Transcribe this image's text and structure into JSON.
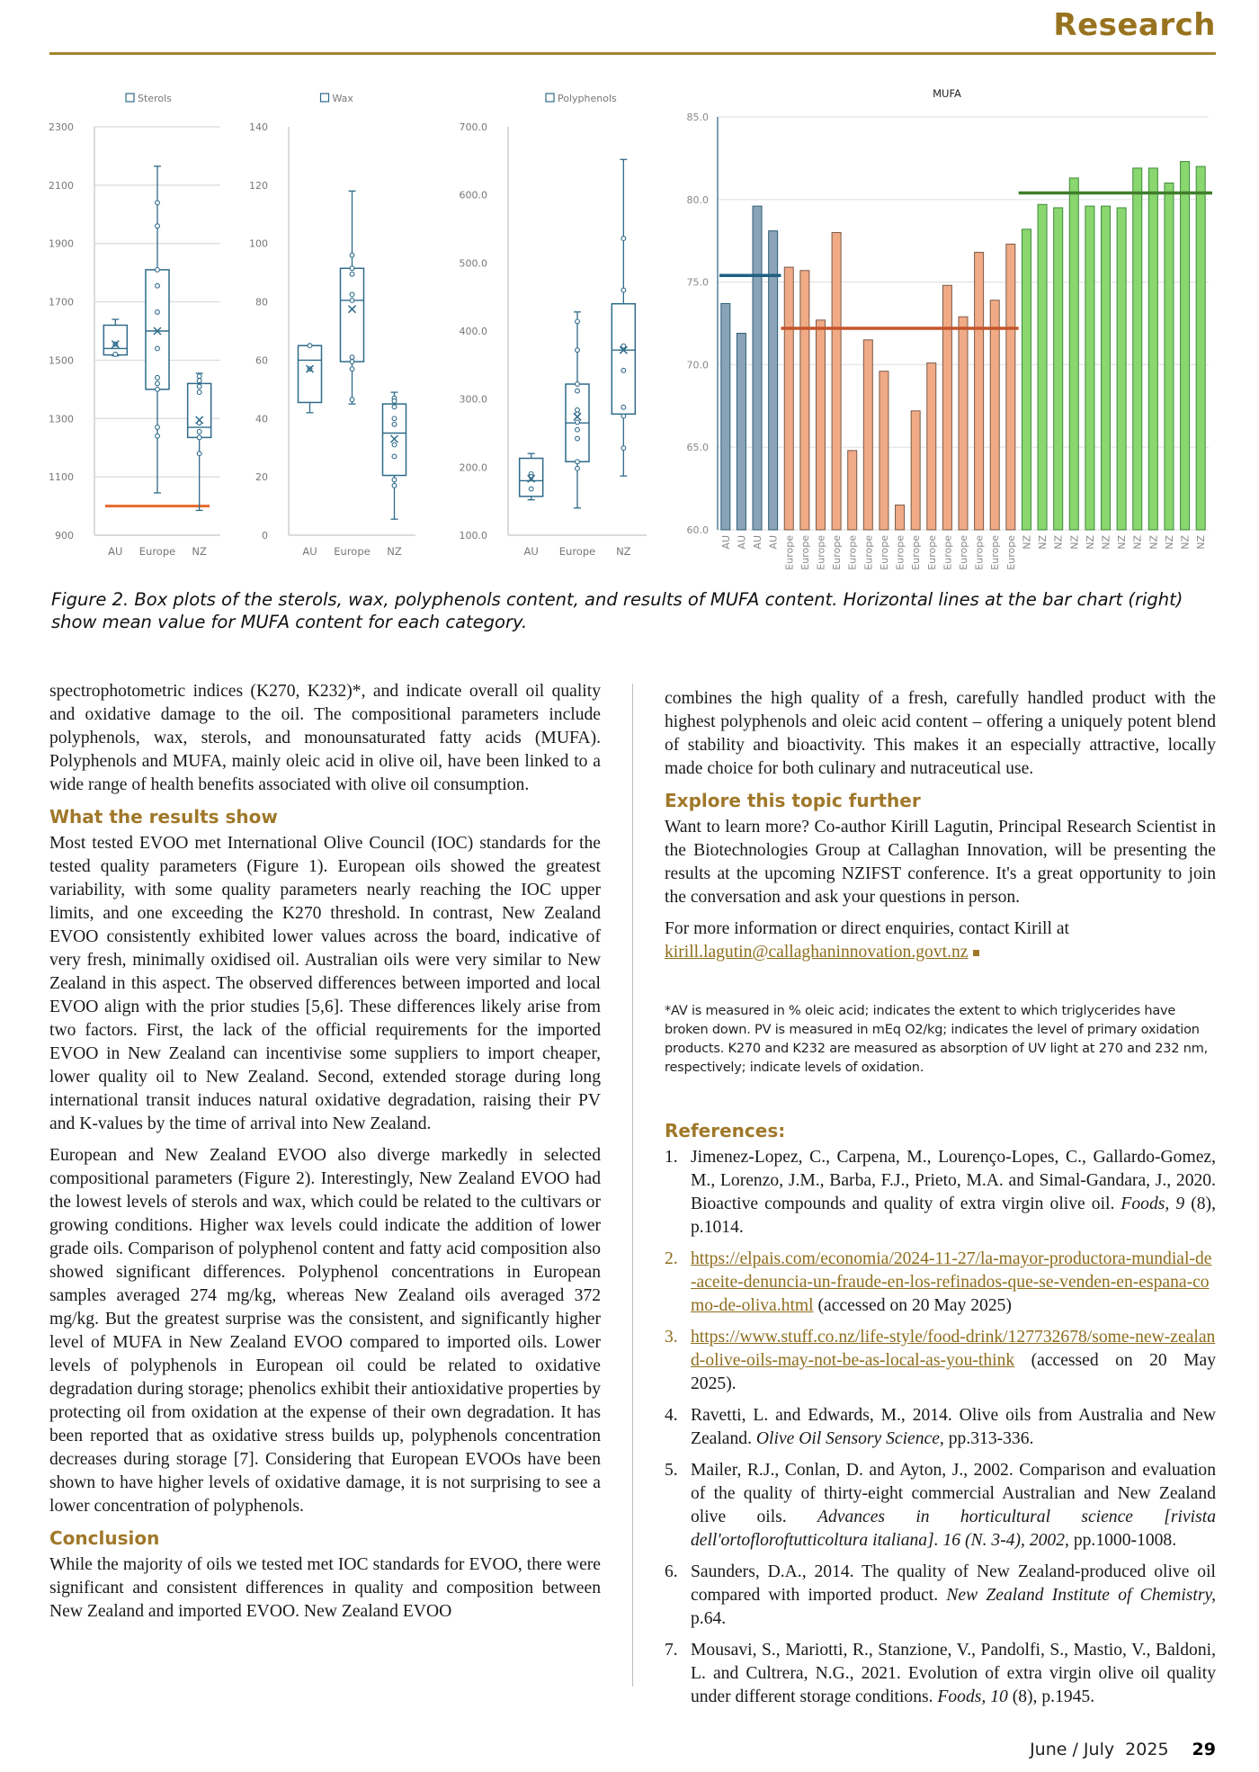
{
  "header": {
    "section": "Research"
  },
  "figure": {
    "caption": "Figure 2. Box plots of the sterols, wax, polyphenols content, and results of MUFA content. Horizontal lines at the bar chart (right) show mean value for MUFA content for each category."
  },
  "colors": {
    "accent": "#a0782a",
    "box": "#2e6b8a",
    "au_bar": "#8aa3b6",
    "europe_bar": "#f0aa86",
    "nz_bar": "#8ad66f",
    "au_mean": "#1f5f82",
    "europe_mean": "#c4552a",
    "nz_mean": "#3f7d2b",
    "limit_line": "#e86a2c"
  },
  "chart_data": [
    {
      "type": "box",
      "title": "Sterols",
      "legend": "Sterols",
      "categories": [
        "AU",
        "Europe",
        "NZ"
      ],
      "ylim": [
        900,
        2300
      ],
      "yticks": [
        "900",
        "1100",
        "1300",
        "1500",
        "1700",
        "1900",
        "2100",
        "2300"
      ],
      "reference_line": 1000,
      "boxes": [
        {
          "min": 1515,
          "q1": 1518,
          "median": 1540,
          "q3": 1620,
          "max": 1640,
          "mean": 1555,
          "points": [
            1520,
            1555
          ]
        },
        {
          "min": 1045,
          "q1": 1400,
          "median": 1600,
          "q3": 1810,
          "max": 2165,
          "mean": 1600,
          "points": [
            2040,
            1960,
            1810,
            1755,
            1665,
            1540,
            1440,
            1420,
            1400,
            1270,
            1240
          ]
        },
        {
          "min": 985,
          "q1": 1235,
          "median": 1270,
          "q3": 1420,
          "max": 1455,
          "mean": 1295,
          "points": [
            1445,
            1430,
            1410,
            1390,
            1285,
            1255,
            1235,
            1180
          ]
        }
      ]
    },
    {
      "type": "box",
      "title": "Wax",
      "legend": "Wax",
      "categories": [
        "AU",
        "Europe",
        "NZ"
      ],
      "ylim": [
        0,
        140
      ],
      "yticks": [
        "0",
        "20",
        "40",
        "60",
        "80",
        "100",
        "120",
        "140"
      ],
      "boxes": [
        {
          "min": 42,
          "q1": 45.5,
          "median": 60,
          "q3": 65,
          "max": 65,
          "mean": 57,
          "points": [
            65,
            57
          ]
        },
        {
          "min": 45,
          "q1": 59.5,
          "median": 80.5,
          "q3": 91.5,
          "max": 118,
          "mean": 77.5,
          "points": [
            96,
            91.5,
            89.5,
            82.5,
            80.5,
            61,
            59.5,
            57,
            46.5
          ]
        },
        {
          "min": 5.5,
          "q1": 20.5,
          "median": 35,
          "q3": 45,
          "max": 49,
          "mean": 33,
          "points": [
            47,
            46,
            44,
            40,
            38,
            31,
            27,
            19,
            17
          ]
        }
      ]
    },
    {
      "type": "box",
      "title": "Polyphenols",
      "legend": "Polyphenols",
      "categories": [
        "AU",
        "Europe",
        "NZ"
      ],
      "ylim": [
        100,
        700
      ],
      "yticks": [
        "100.0",
        "200.0",
        "300.0",
        "400.0",
        "500.0",
        "600.0",
        "700.0"
      ],
      "boxes": [
        {
          "min": 152,
          "q1": 157,
          "median": 180,
          "q3": 213,
          "max": 220,
          "mean": 183,
          "points": [
            190,
            186,
            168
          ]
        },
        {
          "min": 140,
          "q1": 208,
          "median": 265,
          "q3": 322,
          "max": 428,
          "mean": 274,
          "points": [
            414,
            372,
            322,
            312,
            284,
            278,
            266,
            255,
            242,
            208,
            198
          ]
        },
        {
          "min": 187,
          "q1": 278,
          "median": 372,
          "q3": 440,
          "max": 652,
          "mean": 372,
          "points": [
            536,
            460,
            378,
            342,
            288,
            275,
            228
          ]
        }
      ]
    },
    {
      "type": "bar",
      "title": "MUFA",
      "ylim": [
        60,
        85
      ],
      "yticks": [
        "60.0",
        "65.0",
        "70.0",
        "75.0",
        "80.0",
        "85.0"
      ],
      "groups": [
        {
          "name": "AU",
          "values": [
            73.7,
            71.9,
            79.6,
            78.1
          ],
          "mean": 75.4
        },
        {
          "name": "Europe",
          "values": [
            75.9,
            75.7,
            72.7,
            78.0,
            64.8,
            71.5,
            69.6,
            61.5,
            67.2,
            70.1,
            74.8,
            72.9,
            76.8,
            73.9,
            77.3
          ],
          "mean": 72.2
        },
        {
          "name": "NZ",
          "values": [
            78.2,
            79.7,
            79.5,
            81.3,
            79.6,
            79.6,
            79.5,
            81.9,
            81.9,
            81.0,
            82.3,
            82.0
          ],
          "mean": 80.4
        }
      ]
    }
  ],
  "left_column": {
    "intro": "spectrophotometric indices (K270, K232)*, and indicate overall oil quality and oxidative damage to the oil. The compositional parameters include polyphenols, wax, sterols, and monounsaturated fatty acids (MUFA). Polyphenols and MUFA, mainly oleic acid in olive oil, have been linked to a wide range of health benefits associated with olive oil consumption.",
    "results_heading": "What the results show",
    "results_p1": "Most tested EVOO met International Olive Council (IOC) standards for the tested quality parameters (Figure 1). European oils showed the greatest variability, with some quality parameters nearly reaching the IOC upper limits, and one exceeding the K270 threshold. In contrast, New Zealand EVOO consistently exhibited lower values across the board, indicative of very fresh, minimally oxidised oil. Australian oils were very similar to New Zealand in this aspect. The observed differences between imported and local EVOO align with the prior studies [5,6]. These differences likely arise from two factors. First, the lack of the official requirements for the imported EVOO in New Zealand can incentivise some suppliers to import cheaper, lower quality oil to New Zealand. Second, extended storage during long international transit induces natural oxidative degradation, raising their PV and K-values by the time of arrival into New Zealand.",
    "results_p2": "European and New Zealand EVOO also diverge markedly in selected compositional parameters (Figure 2). Interestingly, New Zealand EVOO had the lowest levels of sterols and wax, which could be related to the cultivars or growing conditions. Higher wax levels could indicate the addition of lower grade oils. Comparison of polyphenol content and fatty acid composition also showed significant differences. Polyphenol concentrations in European samples averaged 274 mg/kg, whereas New Zealand oils averaged 372 mg/kg. But the greatest surprise was the consistent, and significantly higher level of MUFA in New Zealand EVOO compared to imported oils. Lower levels of polyphenols in European oil could be related to oxidative degradation during storage; phenolics exhibit their antioxidative properties by protecting oil from oxidation at the expense of their own degradation. It has been reported that as oxidative stress builds up, polyphenols concentration decreases during storage [7]. Considering that European EVOOs have been shown to have higher levels of oxidative damage, it is not surprising to see a lower concentration of polyphenols.",
    "conclusion_heading": "Conclusion",
    "conclusion_p": "While the majority of oils we tested met IOC standards for EVOO, there were significant and consistent differences in quality and composition between New Zealand and imported EVOO. New Zealand EVOO"
  },
  "right_column": {
    "conclusion_cont": "combines the high quality of a fresh, carefully handled product with the highest polyphenols and oleic acid content – offering a uniquely potent blend of stability and bioactivity. This makes it an especially attractive, locally made choice for both culinary and nutraceutical use.",
    "explore_heading": "Explore this topic further",
    "explore_p": "Want to learn more? Co-author Kirill Lagutin, Principal Research Scientist in the Biotechnologies Group at Callaghan Innovation, will be presenting the results at the upcoming NZIFST conference. It's a great opportunity to join the conversation and ask your questions in person.",
    "contact_text": "For more information or direct enquiries, contact Kirill at",
    "contact_email": "kirill.lagutin@callaghaninnovation.govt.nz",
    "footnote": "*AV is measured in % oleic acid; indicates the extent to which triglycerides have broken down. PV is measured in mEq O2/kg; indicates the level of primary oxidation products. K270 and K232 are measured as absorption of UV light at 270 and 232 nm, respectively; indicate levels of oxidation.",
    "references_heading": "References:",
    "references": [
      {
        "num": "1.",
        "text": "Jimenez-Lopez, C., Carpena, M., Lourenço-Lopes, C., Gallardo-Gomez, M., Lorenzo, J.M., Barba, F.J., Prieto, M.A. and Simal-Gandara, J., 2020. Bioactive compounds and quality of extra virgin olive oil. ",
        "journal": "Foods, 9",
        "tail": " (8), p.1014."
      },
      {
        "num": "2.",
        "url": "https://elpais.com/economia/2024-11-27/la-mayor-productora-mundial-de-aceite-denuncia-un-fraude-en-los-refinados-que-se-venden-en-espana-como-de-oliva.html",
        "tail": " (accessed on 20 May 2025)"
      },
      {
        "num": "3.",
        "url": "https://www.stuff.co.nz/life-style/food-drink/127732678/some-new-zealand-olive-oils-may-not-be-as-local-as-you-think",
        "tail": " (accessed on 20 May 2025)."
      },
      {
        "num": "4.",
        "text": "Ravetti, L. and Edwards, M., 2014. Olive oils from Australia and New Zealand. ",
        "journal": "Olive Oil Sensory Science,",
        "tail": " pp.313-336."
      },
      {
        "num": "5.",
        "text": "Mailer, R.J., Conlan, D. and Ayton, J., 2002. Comparison and evaluation of the quality of thirty-eight commercial Australian and New Zealand olive oils. ",
        "journal": "Advances in horticultural science [rivista dell'ortofloroftutticoltura italiana]. 16 (N. 3-4), 2002,",
        "tail": " pp.1000-1008."
      },
      {
        "num": "6.",
        "text": "Saunders, D.A., 2014. The quality of New Zealand-produced olive oil compared with imported product. ",
        "journal": "New Zealand Institute of Chemistry,",
        "tail": " p.64."
      },
      {
        "num": "7.",
        "text": "Mousavi, S., Mariotti, R., Stanzione, V., Pandolfi, S., Mastio, V., Baldoni, L. and Cultrera, N.G., 2021. Evolution of extra virgin olive oil quality under different storage conditions. ",
        "journal": "Foods, 10",
        "tail": " (8), p.1945."
      }
    ]
  },
  "footer": {
    "issue": "June / July  2025",
    "page": "29"
  }
}
